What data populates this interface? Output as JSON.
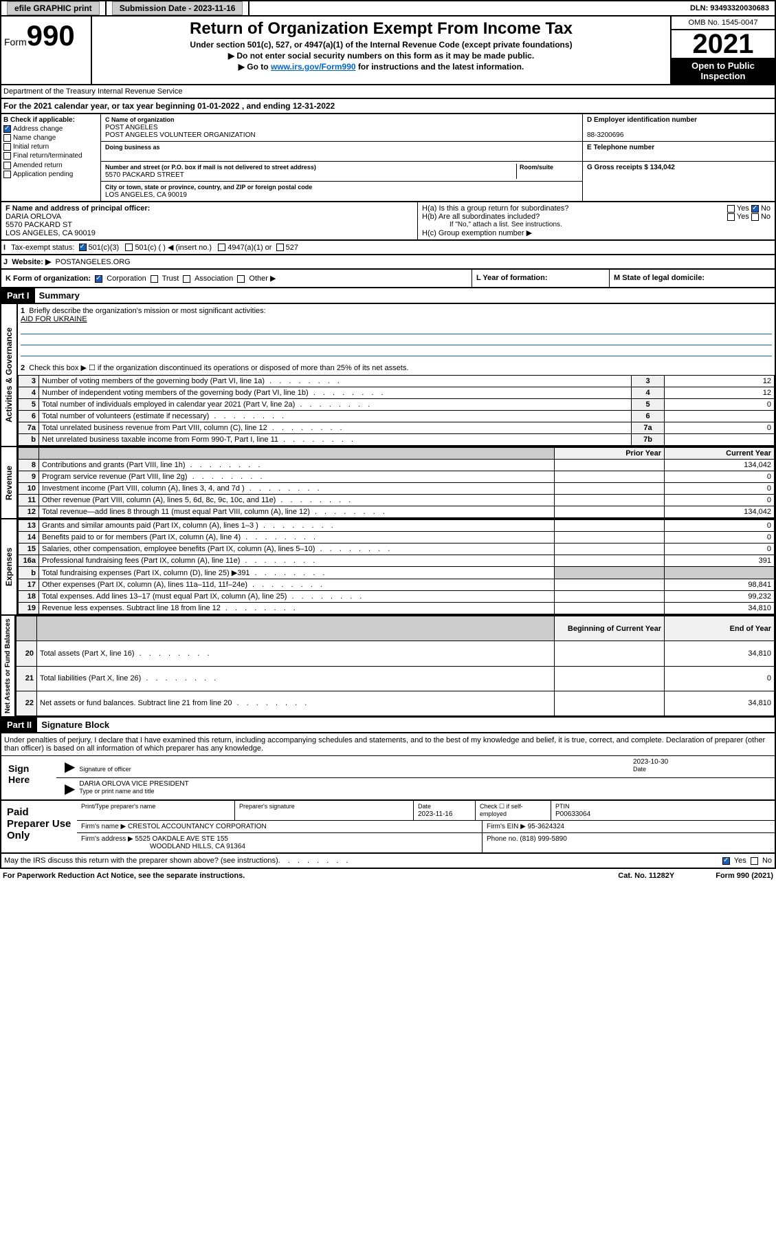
{
  "topbar": {
    "efile": "efile GRAPHIC print",
    "submission_label": "Submission Date - 2023-11-16",
    "dln": "DLN: 93493320030683"
  },
  "header": {
    "form_word": "Form",
    "form_num": "990",
    "title": "Return of Organization Exempt From Income Tax",
    "subtitle": "Under section 501(c), 527, or 4947(a)(1) of the Internal Revenue Code (except private foundations)",
    "note1": "▶ Do not enter social security numbers on this form as it may be made public.",
    "note2_pre": "▶ Go to ",
    "note2_link": "www.irs.gov/Form990",
    "note2_post": " for instructions and the latest information.",
    "omb": "OMB No. 1545-0047",
    "year": "2021",
    "open": "Open to Public Inspection",
    "dept": "Department of the Treasury\nInternal Revenue Service"
  },
  "period": {
    "text": "For the 2021 calendar year, or tax year beginning 01-01-2022   , and ending 12-31-2022"
  },
  "box_b": {
    "label": "B Check if applicable:",
    "items": [
      "Address change",
      "Name change",
      "Initial return",
      "Final return/terminated",
      "Amended return",
      "Application pending"
    ],
    "checked_idx": 0
  },
  "box_c": {
    "name_label": "C Name of organization",
    "name1": "POST ANGELES",
    "name2": "POST ANGELES VOLUNTEER ORGANIZATION",
    "dba_label": "Doing business as",
    "addr_label": "Number and street (or P.O. box if mail is not delivered to street address)",
    "room_label": "Room/suite",
    "addr": "5570 PACKARD STREET",
    "city_label": "City or town, state or province, country, and ZIP or foreign postal code",
    "city": "LOS ANGELES, CA  90019"
  },
  "box_d": {
    "label": "D Employer identification number",
    "value": "88-3200696"
  },
  "box_e": {
    "label": "E Telephone number"
  },
  "box_g": {
    "label": "G Gross receipts $ 134,042"
  },
  "officer": {
    "label": "F  Name and address of principal officer:",
    "name": "DARIA ORLOVA",
    "addr1": "5570 PACKARD ST",
    "addr2": "LOS ANGELES, CA  90019"
  },
  "box_h": {
    "a": "H(a)  Is this a group return for subordinates?",
    "b": "H(b)  Are all subordinates included?",
    "b_note": "If \"No,\" attach a list. See instructions.",
    "c": "H(c)  Group exemption number ▶",
    "yes": "Yes",
    "no": "No"
  },
  "status": {
    "letter": "I",
    "label": "Tax-exempt status:",
    "opts": [
      "501(c)(3)",
      "501(c) (   ) ◀ (insert no.)",
      "4947(a)(1) or",
      "527"
    ]
  },
  "website": {
    "letter": "J",
    "label": "Website: ▶",
    "value": "POSTANGELES.ORG"
  },
  "k": {
    "label": "K Form of organization:",
    "opts": [
      "Corporation",
      "Trust",
      "Association",
      "Other ▶"
    ]
  },
  "l": {
    "label": "L Year of formation:"
  },
  "m": {
    "label": "M State of legal domicile:"
  },
  "part1": {
    "header": "Part I",
    "title": "Summary",
    "q1": "Briefly describe the organization's mission or most significant activities:",
    "mission": "AID FOR UKRAINE",
    "q2": "Check this box ▶ ☐  if the organization discontinued its operations or disposed of more than 25% of its net assets.",
    "rows_gov": [
      {
        "n": "3",
        "t": "Number of voting members of the governing body (Part VI, line 1a)",
        "box": "3",
        "v": "12"
      },
      {
        "n": "4",
        "t": "Number of independent voting members of the governing body (Part VI, line 1b)",
        "box": "4",
        "v": "12"
      },
      {
        "n": "5",
        "t": "Total number of individuals employed in calendar year 2021 (Part V, line 2a)",
        "box": "5",
        "v": "0"
      },
      {
        "n": "6",
        "t": "Total number of volunteers (estimate if necessary)",
        "box": "6",
        "v": ""
      },
      {
        "n": "7a",
        "t": "Total unrelated business revenue from Part VIII, column (C), line 12",
        "box": "7a",
        "v": "0"
      },
      {
        "n": "b",
        "t": "Net unrelated business taxable income from Form 990-T, Part I, line 11",
        "box": "7b",
        "v": ""
      }
    ],
    "prior": "Prior Year",
    "current": "Current Year",
    "rows_rev": [
      {
        "n": "8",
        "t": "Contributions and grants (Part VIII, line 1h)",
        "p": "",
        "c": "134,042"
      },
      {
        "n": "9",
        "t": "Program service revenue (Part VIII, line 2g)",
        "p": "",
        "c": "0"
      },
      {
        "n": "10",
        "t": "Investment income (Part VIII, column (A), lines 3, 4, and 7d )",
        "p": "",
        "c": "0"
      },
      {
        "n": "11",
        "t": "Other revenue (Part VIII, column (A), lines 5, 6d, 8c, 9c, 10c, and 11e)",
        "p": "",
        "c": "0"
      },
      {
        "n": "12",
        "t": "Total revenue—add lines 8 through 11 (must equal Part VIII, column (A), line 12)",
        "p": "",
        "c": "134,042"
      }
    ],
    "rows_exp": [
      {
        "n": "13",
        "t": "Grants and similar amounts paid (Part IX, column (A), lines 1–3 )",
        "p": "",
        "c": "0"
      },
      {
        "n": "14",
        "t": "Benefits paid to or for members (Part IX, column (A), line 4)",
        "p": "",
        "c": "0"
      },
      {
        "n": "15",
        "t": "Salaries, other compensation, employee benefits (Part IX, column (A), lines 5–10)",
        "p": "",
        "c": "0"
      },
      {
        "n": "16a",
        "t": "Professional fundraising fees (Part IX, column (A), line 11e)",
        "p": "",
        "c": "391"
      },
      {
        "n": "b",
        "t": "Total fundraising expenses (Part IX, column (D), line 25) ▶391",
        "p": "shade",
        "c": "shade"
      },
      {
        "n": "17",
        "t": "Other expenses (Part IX, column (A), lines 11a–11d, 11f–24e)",
        "p": "",
        "c": "98,841"
      },
      {
        "n": "18",
        "t": "Total expenses. Add lines 13–17 (must equal Part IX, column (A), line 25)",
        "p": "",
        "c": "99,232"
      },
      {
        "n": "19",
        "t": "Revenue less expenses. Subtract line 18 from line 12",
        "p": "",
        "c": "34,810"
      }
    ],
    "beg": "Beginning of Current Year",
    "end": "End of Year",
    "rows_net": [
      {
        "n": "20",
        "t": "Total assets (Part X, line 16)",
        "p": "",
        "c": "34,810"
      },
      {
        "n": "21",
        "t": "Total liabilities (Part X, line 26)",
        "p": "",
        "c": "0"
      },
      {
        "n": "22",
        "t": "Net assets or fund balances. Subtract line 21 from line 20",
        "p": "",
        "c": "34,810"
      }
    ],
    "sidelabels": [
      "Activities & Governance",
      "Revenue",
      "Expenses",
      "Net Assets or Fund Balances"
    ]
  },
  "part2": {
    "header": "Part II",
    "title": "Signature Block",
    "decl": "Under penalties of perjury, I declare that I have examined this return, including accompanying schedules and statements, and to the best of my knowledge and belief, it is true, correct, and complete. Declaration of preparer (other than officer) is based on all information of which preparer has any knowledge.",
    "sign_here": "Sign Here",
    "sig_officer": "Signature of officer",
    "sig_date": "2023-10-30",
    "date_label": "Date",
    "name_title": "DARIA ORLOVA  VICE PRESIDENT",
    "name_label": "Type or print name and title"
  },
  "preparer": {
    "label": "Paid Preparer Use Only",
    "h1": "Print/Type preparer's name",
    "h2": "Preparer's signature",
    "h3": "Date",
    "h3v": "2023-11-16",
    "h4": "Check ☐ if self-employed",
    "h5": "PTIN",
    "h5v": "P00633064",
    "firm_label": "Firm's name    ▶",
    "firm": "CRESTOL ACCOUNTANCY CORPORATION",
    "ein_label": "Firm's EIN ▶",
    "ein": "95-3624324",
    "addr_label": "Firm's address ▶",
    "addr1": "5525 OAKDALE AVE STE 155",
    "addr2": "WOODLAND HILLS, CA  91364",
    "phone_label": "Phone no.",
    "phone": "(818) 999-5890"
  },
  "footer": {
    "q": "May the IRS discuss this return with the preparer shown above? (see instructions)",
    "yes": "Yes",
    "no": "No",
    "paperwork": "For Paperwork Reduction Act Notice, see the separate instructions.",
    "cat": "Cat. No. 11282Y",
    "form": "Form 990 (2021)"
  }
}
